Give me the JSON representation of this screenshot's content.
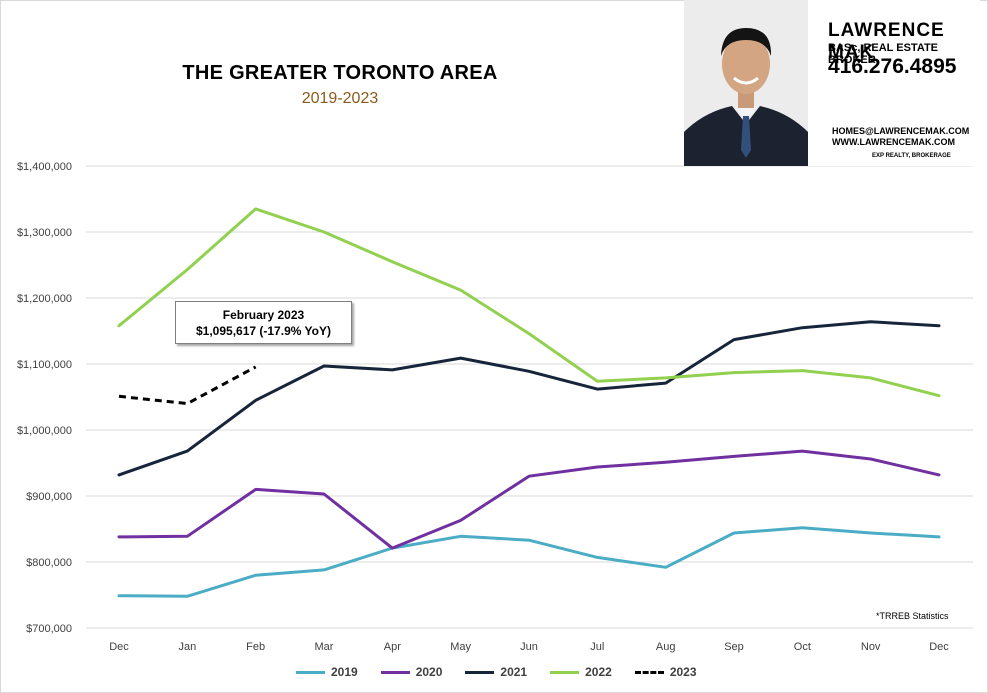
{
  "agent": {
    "name": "LAWRENCE MAK",
    "role": "BASc, REAL ESTATE BROKER",
    "phone": "416.276.4895",
    "email": "HOMES@LAWRENCEMAK.COM",
    "website": "WWW.LAWRENCEMAK.COM",
    "brokerage": "EXP REALTY, BROKERAGE"
  },
  "callout": {
    "line1": "February 2023",
    "line2": "$1,095,617  (-17.9%  YoY)"
  },
  "footnote": "*TRREB Statistics",
  "chart_data": {
    "type": "line",
    "title": "THE GREATER TORONTO AREA",
    "subtitle": "2019-2023",
    "xlabel": "",
    "ylabel": "",
    "categories": [
      "Dec",
      "Jan",
      "Feb",
      "Mar",
      "Apr",
      "May",
      "Jun",
      "Jul",
      "Aug",
      "Sep",
      "Oct",
      "Nov",
      "Dec"
    ],
    "ylim": [
      700000,
      1400000
    ],
    "yticks": [
      700000,
      800000,
      900000,
      1000000,
      1100000,
      1200000,
      1300000,
      1400000
    ],
    "ytick_labels": [
      "$700,000",
      "$800,000",
      "$900,000",
      "$1,000,000",
      "$1,100,000",
      "$1,200,000",
      "$1,300,000",
      "$1,400,000"
    ],
    "grid": true,
    "legend_position": "bottom",
    "series": [
      {
        "name": "2019",
        "color": "#4bacc6",
        "dashed": false,
        "values": [
          749000,
          748000,
          780000,
          788000,
          821000,
          839000,
          833000,
          807000,
          792000,
          844000,
          852000,
          844000,
          838000
        ]
      },
      {
        "name": "2020",
        "color": "#7030a0",
        "dashed": false,
        "values": [
          838000,
          839000,
          910000,
          903000,
          821000,
          863000,
          930000,
          944000,
          951000,
          960000,
          968000,
          956000,
          932000
        ]
      },
      {
        "name": "2021",
        "color": "#17253a",
        "dashed": false,
        "values": [
          932000,
          968000,
          1045000,
          1097000,
          1091000,
          1109000,
          1089000,
          1062000,
          1071000,
          1137000,
          1155000,
          1164000,
          1158000
        ]
      },
      {
        "name": "2022",
        "color": "#92d050",
        "dashed": false,
        "values": [
          1158000,
          1243000,
          1335000,
          1300000,
          1255000,
          1212000,
          1146000,
          1074000,
          1079000,
          1087000,
          1090000,
          1079000,
          1052000
        ]
      },
      {
        "name": "2023",
        "color": "#000000",
        "dashed": true,
        "values": [
          1051000,
          1040000,
          1095617,
          null,
          null,
          null,
          null,
          null,
          null,
          null,
          null,
          null,
          null
        ]
      }
    ]
  }
}
